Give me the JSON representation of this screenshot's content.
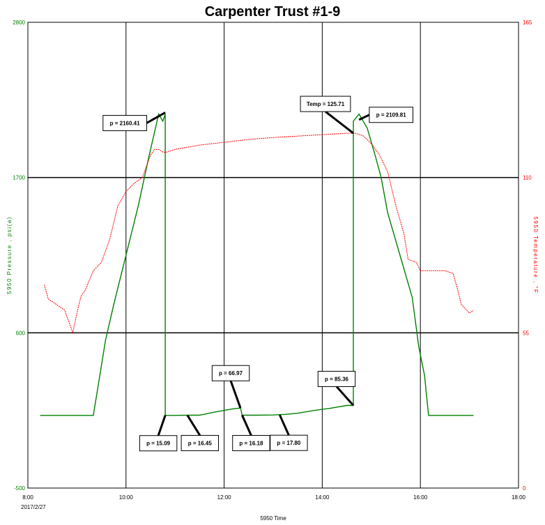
{
  "chart_data": {
    "type": "line",
    "title": "Carpenter Trust #1-9",
    "xlabel": "5950 Time",
    "ylabel_left": "5950 Pressure , psi(a)",
    "ylabel_right": "5950 Temperature , °F",
    "x_range": [
      "8:00",
      "18:00"
    ],
    "x_ticks": [
      "8:00",
      "10:00",
      "12:00",
      "14:00",
      "16:00",
      "18:00"
    ],
    "x_date_label": "2017/2/27",
    "y_left_range": [
      -500,
      2800
    ],
    "y_left_ticks": [
      2800,
      1700,
      600,
      -500
    ],
    "y_right_range": [
      0,
      165
    ],
    "y_right_ticks": [
      165,
      110,
      55,
      0
    ],
    "grid": true,
    "colors": {
      "pressure": "#008000",
      "temperature": "#ff0000",
      "left_axis_text": "#008000",
      "right_axis_text": "#ff0000"
    },
    "series": [
      {
        "name": "5950 Pressure",
        "axis": "left",
        "x": [
          "8:15",
          "9:20",
          "9:28",
          "9:35",
          "9:45",
          "10:00",
          "10:15",
          "10:28",
          "10:40",
          "10:45",
          "10:48",
          "10:48",
          "10:50",
          "10:55",
          "11:20",
          "11:30",
          "11:50",
          "12:10",
          "12:20",
          "12:22",
          "12:24",
          "12:40",
          "13:00",
          "13:15",
          "13:30",
          "13:50",
          "14:10",
          "14:30",
          "14:38",
          "14:38",
          "14:45",
          "14:55",
          "15:05",
          "15:12",
          "15:20",
          "15:35",
          "15:50",
          "15:58",
          "16:05",
          "16:10",
          "16:20",
          "17:05"
        ],
        "y": [
          15,
          15,
          300,
          550,
          800,
          1150,
          1500,
          1850,
          2150,
          2100,
          2150,
          17,
          15,
          15,
          16.45,
          16.45,
          40,
          60,
          66.97,
          16.18,
          16.18,
          16.18,
          17.8,
          22,
          30,
          50,
          65,
          85.36,
          85.36,
          2100,
          2150,
          2050,
          1850,
          1700,
          1450,
          1150,
          850,
          500,
          300,
          15,
          15,
          15
        ]
      },
      {
        "name": "5950 Temperature",
        "axis": "right",
        "x": [
          "8:20",
          "8:25",
          "8:35",
          "8:45",
          "8:50",
          "8:55",
          "9:00",
          "9:05",
          "9:10",
          "9:20",
          "9:30",
          "9:40",
          "9:50",
          "10:00",
          "10:10",
          "10:20",
          "10:25",
          "10:30",
          "10:35",
          "10:40",
          "10:45",
          "10:50",
          "11:00",
          "11:30",
          "12:00",
          "12:30",
          "13:00",
          "13:30",
          "14:00",
          "14:30",
          "14:40",
          "14:45",
          "14:50",
          "15:00",
          "15:10",
          "15:20",
          "15:30",
          "15:40",
          "15:45",
          "15:55",
          "16:00",
          "16:10",
          "16:20",
          "16:30",
          "16:40",
          "16:45",
          "16:50",
          "17:00",
          "17:05"
        ],
        "y": [
          72,
          67,
          65,
          63,
          59,
          55,
          62,
          68,
          70,
          77,
          80,
          88,
          100,
          105,
          108,
          110,
          114,
          118,
          120,
          120,
          119,
          119,
          120,
          121.5,
          122.5,
          123.5,
          124.2,
          124.7,
          125.2,
          125.71,
          125.71,
          125.3,
          124.8,
          122,
          118,
          112,
          100,
          90,
          81,
          80,
          77,
          77,
          77,
          77,
          76,
          71,
          65,
          62,
          63
        ]
      }
    ],
    "annotations": [
      {
        "text": "p = 2160.41",
        "x": "10:48",
        "y": 2160.41
      },
      {
        "text": "Temp = 125.71",
        "x": "14:38",
        "y": 125.71
      },
      {
        "text": "p = 2109.81",
        "x": "14:45",
        "y": 2109.81
      },
      {
        "text": "p = 66.97",
        "x": "12:20",
        "y": 66.97
      },
      {
        "text": "p = 85.36",
        "x": "14:38",
        "y": 85.36
      },
      {
        "text": "p = 15.09",
        "x": "10:48",
        "y": 15.09
      },
      {
        "text": "p = 16.45",
        "x": "11:15",
        "y": 16.45
      },
      {
        "text": "p = 16.18",
        "x": "12:22",
        "y": 16.18
      },
      {
        "text": "p = 17.80",
        "x": "13:08",
        "y": 17.8
      }
    ]
  }
}
